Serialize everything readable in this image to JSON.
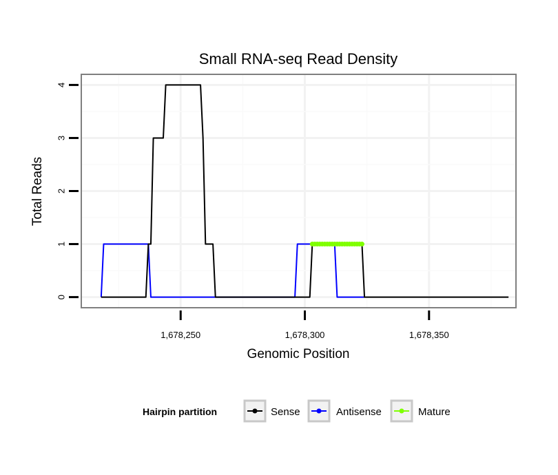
{
  "chart_data": {
    "type": "line",
    "title": "Small RNA-seq Read Density",
    "xlabel": "Genomic Position",
    "ylabel": "Total Reads",
    "xlim": [
      1678210,
      1678385
    ],
    "ylim": [
      -0.2,
      4.2
    ],
    "x_ticks": [
      1678250,
      1678300,
      1678350
    ],
    "x_tick_labels": [
      "1,678,250",
      "1,678,300",
      "1,678,350"
    ],
    "y_ticks": [
      0,
      1,
      2,
      3,
      4
    ],
    "y_tick_labels": [
      "0",
      "1",
      "2",
      "3",
      "4"
    ],
    "grid": true,
    "legend": {
      "title": "Hairpin partition",
      "placement": "bottom",
      "entries": [
        {
          "name": "Sense",
          "color": "#000000"
        },
        {
          "name": "Antisense",
          "color": "#0000ff"
        },
        {
          "name": "Mature",
          "color": "#7fff00"
        }
      ]
    },
    "series": [
      {
        "name": "Sense",
        "color": "#000000",
        "points": [
          [
            1678218,
            0
          ],
          [
            1678236,
            0
          ],
          [
            1678237,
            1
          ],
          [
            1678238,
            1
          ],
          [
            1678239,
            3
          ],
          [
            1678243,
            3
          ],
          [
            1678244,
            4
          ],
          [
            1678258,
            4
          ],
          [
            1678259,
            3
          ],
          [
            1678260,
            1
          ],
          [
            1678263,
            1
          ],
          [
            1678264,
            0
          ],
          [
            1678302,
            0
          ],
          [
            1678303,
            1
          ],
          [
            1678323,
            1
          ],
          [
            1678324,
            0
          ],
          [
            1678382,
            0
          ]
        ]
      },
      {
        "name": "Antisense",
        "color": "#0000ff",
        "points": [
          [
            1678218,
            0
          ],
          [
            1678219,
            1
          ],
          [
            1678237,
            1
          ],
          [
            1678238,
            0
          ],
          [
            1678296,
            0
          ],
          [
            1678297,
            1
          ],
          [
            1678312,
            1
          ],
          [
            1678313,
            0
          ],
          [
            1678324,
            0
          ]
        ]
      },
      {
        "name": "Mature",
        "color": "#7fff00",
        "marker": true,
        "points": [
          [
            1678303,
            1
          ],
          [
            1678304,
            1
          ],
          [
            1678305,
            1
          ],
          [
            1678306,
            1
          ],
          [
            1678307,
            1
          ],
          [
            1678308,
            1
          ],
          [
            1678309,
            1
          ],
          [
            1678310,
            1
          ],
          [
            1678311,
            1
          ],
          [
            1678312,
            1
          ],
          [
            1678313,
            1
          ],
          [
            1678314,
            1
          ],
          [
            1678315,
            1
          ],
          [
            1678316,
            1
          ],
          [
            1678317,
            1
          ],
          [
            1678318,
            1
          ],
          [
            1678319,
            1
          ],
          [
            1678320,
            1
          ],
          [
            1678321,
            1
          ],
          [
            1678322,
            1
          ],
          [
            1678323,
            1
          ]
        ]
      }
    ]
  }
}
